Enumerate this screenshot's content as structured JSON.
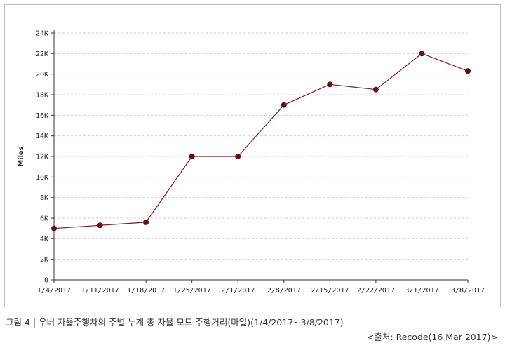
{
  "chart_data": {
    "type": "line",
    "title": "",
    "xlabel": "",
    "ylabel": "Miles",
    "categories": [
      "1/4/2017",
      "1/11/2017",
      "1/18/2017",
      "1/25/2017",
      "2/1/2017",
      "2/8/2017",
      "2/15/2017",
      "2/22/2017",
      "3/1/2017",
      "3/8/2017"
    ],
    "series": [
      {
        "values": [
          5000,
          5300,
          5600,
          12000,
          12000,
          17000,
          19000,
          18500,
          22000,
          20300
        ]
      }
    ],
    "ylim": [
      0,
      24000
    ],
    "yticks": [
      0,
      2000,
      4000,
      6000,
      8000,
      10000,
      12000,
      14000,
      16000,
      18000,
      20000,
      22000,
      24000
    ],
    "ytick_labels": [
      "0",
      "2K",
      "4K",
      "6K",
      "8K",
      "10K",
      "12K",
      "14K",
      "16K",
      "18K",
      "20K",
      "22K",
      "24K"
    ],
    "grid": true,
    "line_color": "#7a1f1f",
    "marker_color": "#5e1212"
  },
  "caption": "그림 4 | 우버 자율주행차의 주별 누계 총 자율 모드 주행거리(마일)(1/4/2017~3/8/2017)",
  "source": "<출처: Recode(16 Mar 2017)>"
}
